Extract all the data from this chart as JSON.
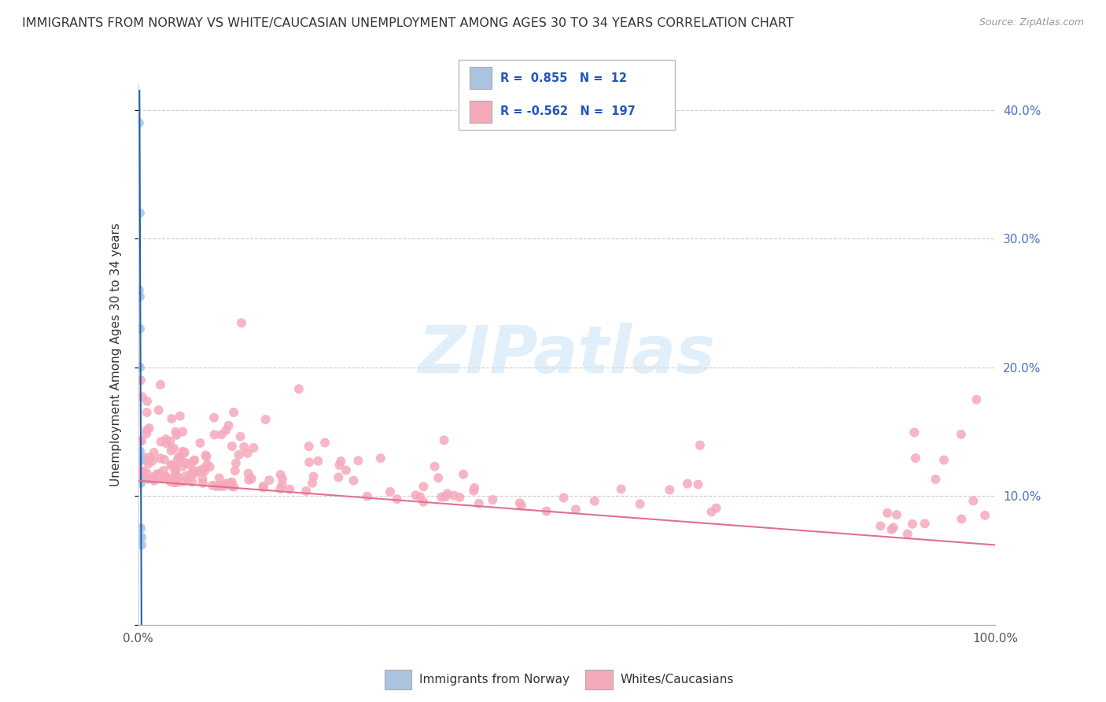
{
  "title": "IMMIGRANTS FROM NORWAY VS WHITE/CAUCASIAN UNEMPLOYMENT AMONG AGES 30 TO 34 YEARS CORRELATION CHART",
  "source": "Source: ZipAtlas.com",
  "ylabel": "Unemployment Among Ages 30 to 34 years",
  "xlim": [
    0,
    1.0
  ],
  "ylim": [
    0,
    0.42
  ],
  "blue_R": 0.855,
  "blue_N": 12,
  "pink_R": -0.562,
  "pink_N": 197,
  "blue_color": "#aac4e0",
  "pink_color": "#f5aabb",
  "blue_line_color": "#2060b0",
  "pink_line_color": "#e07090",
  "yticks": [
    0.0,
    0.1,
    0.2,
    0.3,
    0.4
  ],
  "ytick_labels": [
    "",
    "10.0%",
    "20.0%",
    "30.0%",
    "40.0%"
  ],
  "xticks": [
    0.0,
    1.0
  ],
  "xtick_labels": [
    "0.0%",
    "100.0%"
  ],
  "blue_scatter_x": [
    0.001,
    0.001,
    0.002,
    0.002,
    0.002,
    0.002,
    0.002,
    0.003,
    0.003,
    0.003,
    0.004,
    0.004
  ],
  "blue_scatter_y": [
    0.39,
    0.26,
    0.32,
    0.255,
    0.23,
    0.2,
    0.135,
    0.128,
    0.11,
    0.075,
    0.068,
    0.062
  ],
  "blue_line_x0": 0.0014,
  "blue_line_x1": 0.0038,
  "blue_line_y0": 0.415,
  "blue_line_y1": -0.005,
  "pink_line_x0": 0.0,
  "pink_line_x1": 1.0,
  "pink_line_y0": 0.112,
  "pink_line_y1": 0.062
}
